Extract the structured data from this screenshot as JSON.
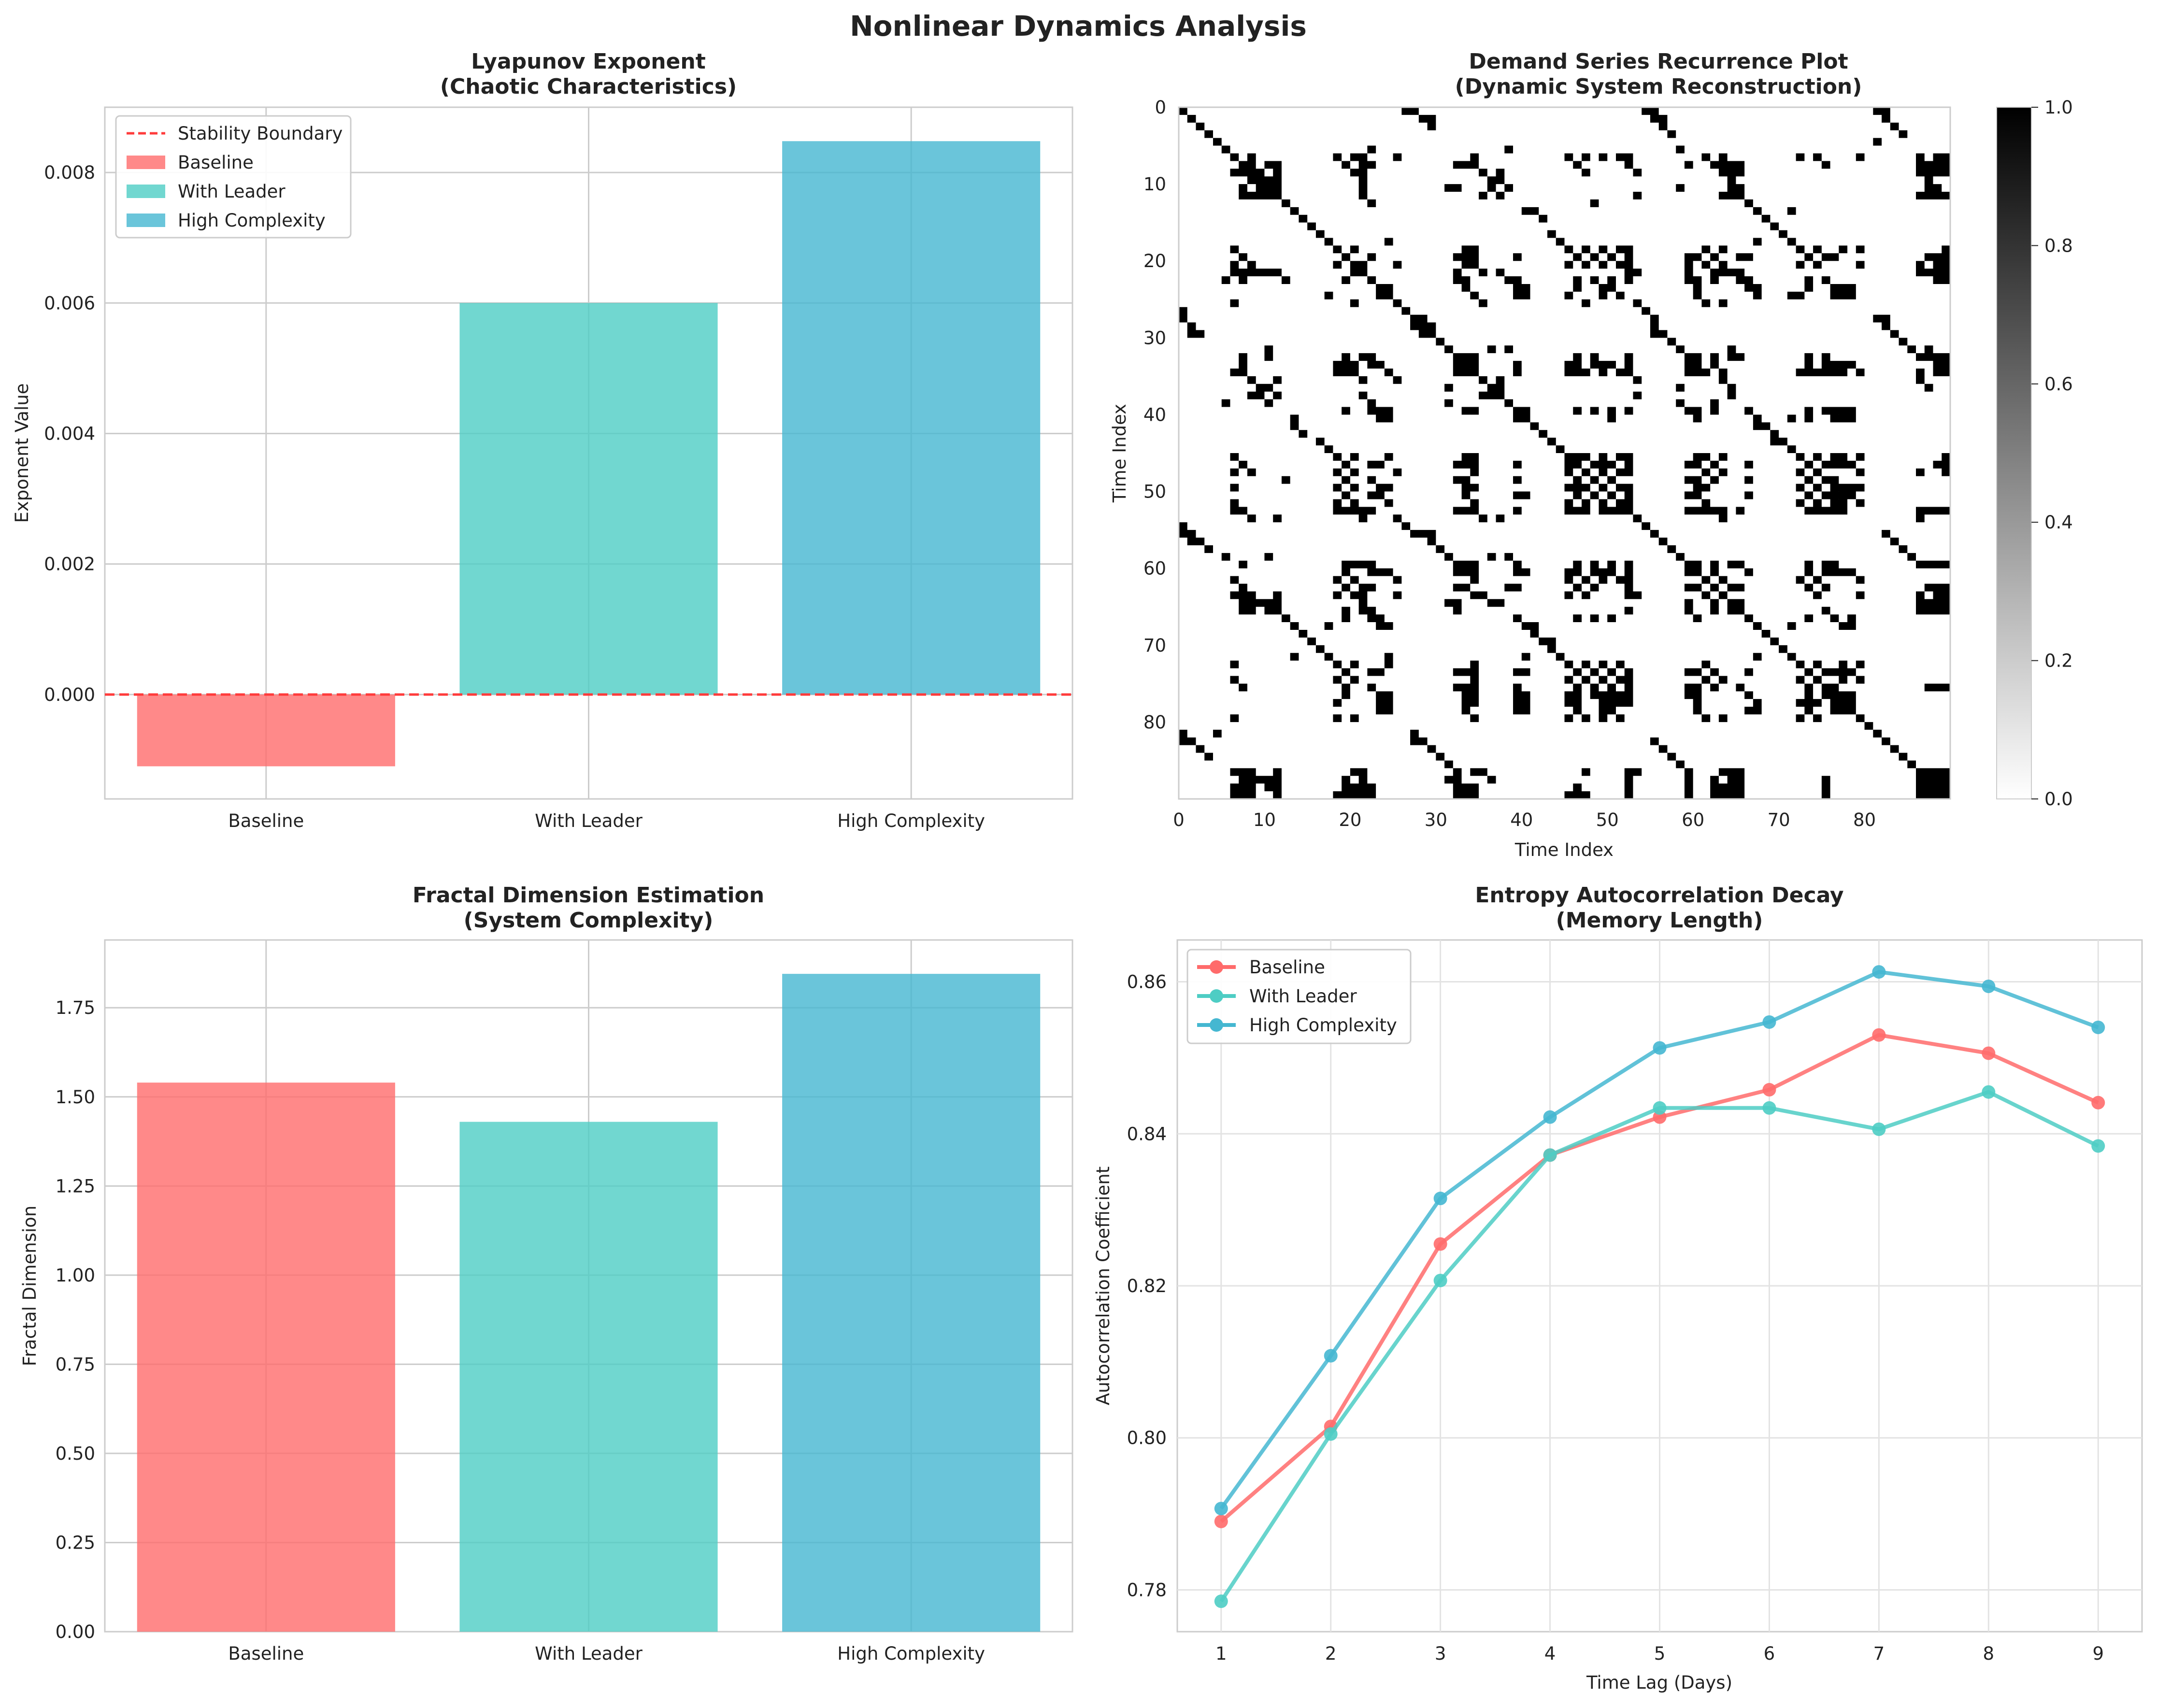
{
  "figure": {
    "title": "Nonlinear Dynamics Analysis"
  },
  "colors": {
    "baseline": "#FF6B6B",
    "with_leader": "#4ECDC4",
    "high_complexity": "#45B7D1",
    "boundary": "#FF3B3B"
  },
  "chart_data": [
    {
      "id": "lyapunov",
      "type": "bar",
      "title": [
        "Lyapunov Exponent",
        "(Chaotic Characteristics)"
      ],
      "categories": [
        "Baseline",
        "With Leader",
        "High Complexity"
      ],
      "values": [
        -0.0011,
        0.006,
        0.00848
      ],
      "xlabel": "",
      "ylabel": "Exponent Value",
      "ylim": [
        -0.0016,
        0.009
      ],
      "yticks": [
        0.0,
        0.002,
        0.004,
        0.006,
        0.008
      ],
      "ytick_labels": [
        "0.000",
        "0.002",
        "0.004",
        "0.006",
        "0.008"
      ],
      "hline": {
        "y": 0,
        "label": "Stability Boundary",
        "style": "dashed"
      },
      "legend": {
        "position": "top-left",
        "entries": [
          "Stability Boundary",
          "Baseline",
          "With Leader",
          "High Complexity"
        ]
      },
      "grid": true
    },
    {
      "id": "recurrence",
      "type": "heatmap",
      "title": [
        "Demand Series Recurrence Plot",
        "(Dynamic System Reconstruction)"
      ],
      "xlabel": "Time Index",
      "ylabel": "Time Index",
      "size": 90,
      "xticks": [
        0,
        10,
        20,
        30,
        40,
        50,
        60,
        70,
        80
      ],
      "yticks": [
        0,
        10,
        20,
        30,
        40,
        50,
        60,
        70,
        80
      ],
      "colorbar": {
        "range": [
          0.0,
          1.0
        ],
        "ticks": [
          "0.0",
          "0.2",
          "0.4",
          "0.6",
          "0.8",
          "1.0"
        ],
        "colormap": "gray_r"
      },
      "values": "binary recurrence matrix (black = recurrence), approximately symmetric"
    },
    {
      "id": "fractal",
      "type": "bar",
      "title": [
        "Fractal Dimension Estimation",
        "(System Complexity)"
      ],
      "categories": [
        "Baseline",
        "With Leader",
        "High Complexity"
      ],
      "values": [
        1.54,
        1.43,
        1.845
      ],
      "xlabel": "",
      "ylabel": "Fractal Dimension",
      "ylim": [
        0,
        1.94
      ],
      "yticks": [
        0.0,
        0.25,
        0.5,
        0.75,
        1.0,
        1.25,
        1.5,
        1.75
      ],
      "ytick_labels": [
        "0.00",
        "0.25",
        "0.50",
        "0.75",
        "1.00",
        "1.25",
        "1.50",
        "1.75"
      ],
      "grid": true
    },
    {
      "id": "entropy",
      "type": "line",
      "title": [
        "Entropy Autocorrelation Decay",
        "(Memory Length)"
      ],
      "x": [
        1,
        2,
        3,
        4,
        5,
        6,
        7,
        8,
        9
      ],
      "xlabel": "Time Lag (Days)",
      "ylabel": "Autocorrelation Coefficient",
      "xlim": [
        0.6,
        9.4
      ],
      "ylim": [
        0.7745,
        0.8655
      ],
      "yticks": [
        0.78,
        0.8,
        0.82,
        0.84,
        0.86
      ],
      "ytick_labels": [
        "0.78",
        "0.80",
        "0.82",
        "0.84",
        "0.86"
      ],
      "series": [
        {
          "name": "Baseline",
          "values": [
            0.789,
            0.8015,
            0.8255,
            0.8372,
            0.8422,
            0.8458,
            0.853,
            0.8506,
            0.8441
          ]
        },
        {
          "name": "With Leader",
          "values": [
            0.7785,
            0.8005,
            0.8207,
            0.8372,
            0.8434,
            0.8434,
            0.8406,
            0.8455,
            0.8384
          ]
        },
        {
          "name": "High Complexity",
          "values": [
            0.7907,
            0.8108,
            0.8315,
            0.8422,
            0.8513,
            0.8547,
            0.8613,
            0.8594,
            0.854
          ]
        }
      ],
      "legend": {
        "position": "top-left"
      },
      "grid": true
    }
  ]
}
